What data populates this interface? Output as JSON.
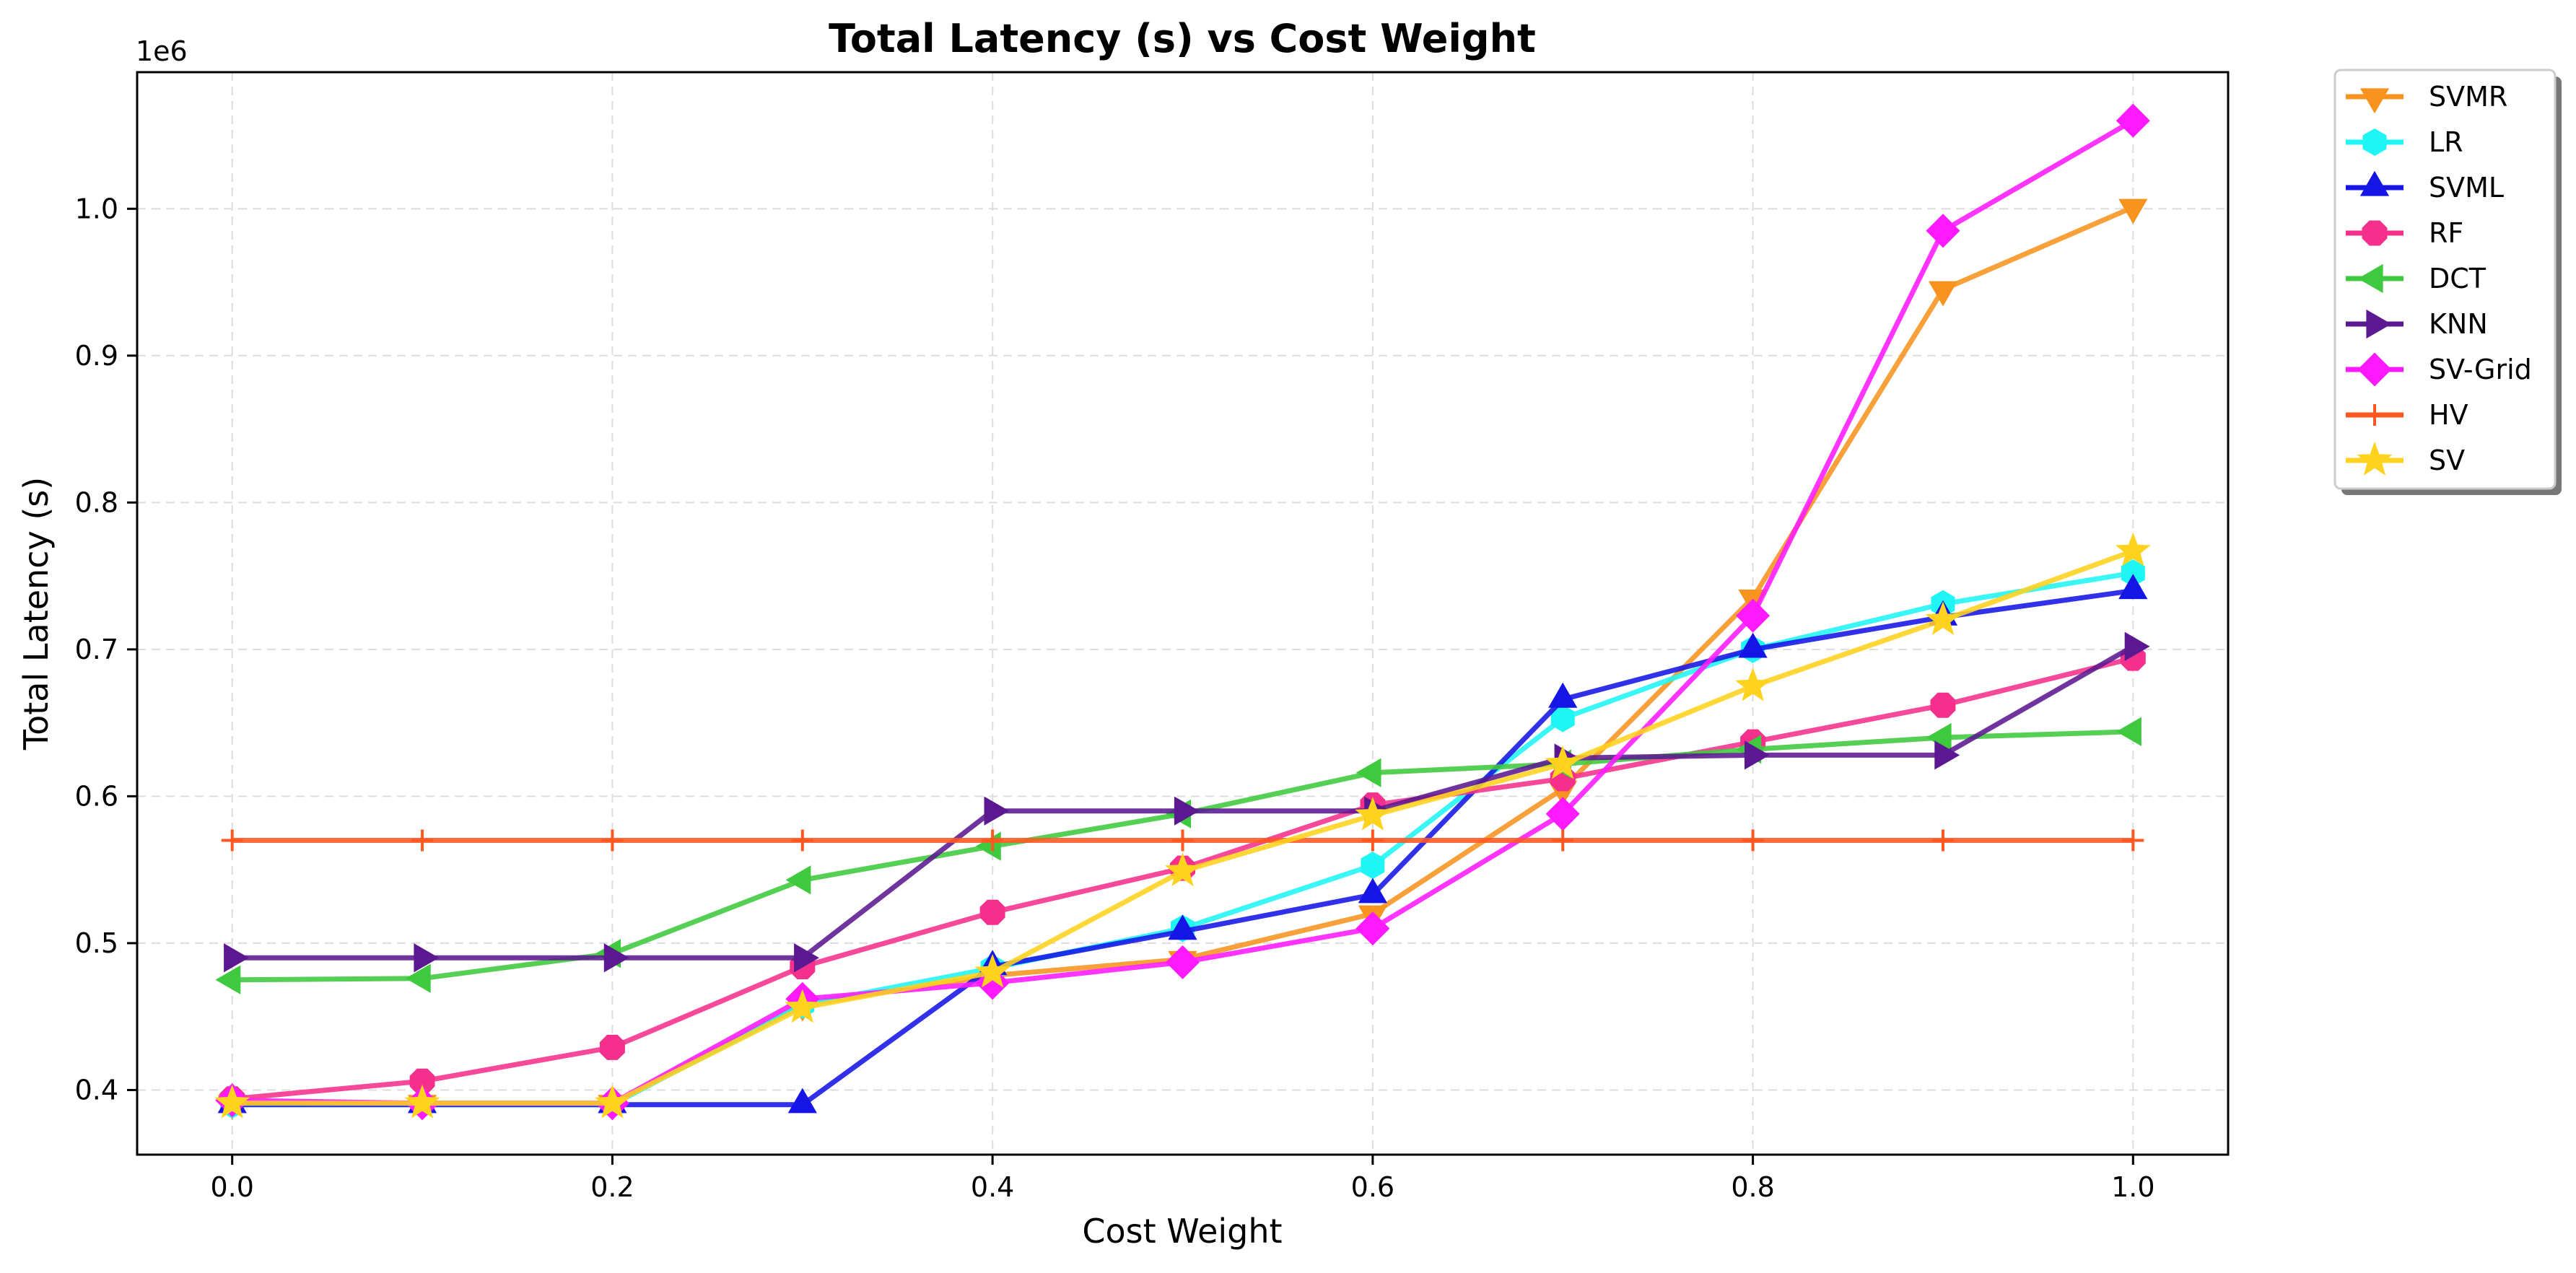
{
  "chart_data": {
    "type": "line",
    "title": "Total Latency (s) vs Cost Weight",
    "xlabel": "Cost Weight",
    "ylabel": "Total Latency (s)",
    "y_offset_label": "1e6",
    "y_scale": 1000000,
    "x": [
      0.0,
      0.1,
      0.2,
      0.3,
      0.4,
      0.5,
      0.6,
      0.7,
      0.8,
      0.9,
      1.0
    ],
    "xlim": [
      -0.05,
      1.05
    ],
    "ylim": [
      356000,
      1093000
    ],
    "x_ticks": [
      0.0,
      0.2,
      0.4,
      0.6,
      0.8,
      1.0
    ],
    "x_tick_labels": [
      "0.0",
      "0.2",
      "0.4",
      "0.6",
      "0.8",
      "1.0"
    ],
    "y_ticks": [
      400000,
      500000,
      600000,
      700000,
      800000,
      900000,
      1000000
    ],
    "y_tick_labels": [
      "0.4",
      "0.5",
      "0.6",
      "0.7",
      "0.8",
      "0.9",
      "1.0"
    ],
    "grid": true,
    "legend_position": "outside-top-right",
    "series": [
      {
        "name": "SVMR",
        "color": "#f7931e",
        "marker": "triangle-down",
        "values": [
          391000,
          391000,
          391000,
          458000,
          478000,
          489000,
          520000,
          605000,
          735000,
          945000,
          1001000
        ]
      },
      {
        "name": "LR",
        "color": "#1ff5f5",
        "marker": "hexagon",
        "values": [
          390000,
          390000,
          390000,
          458000,
          483000,
          510000,
          553000,
          653000,
          700000,
          731000,
          752000
        ]
      },
      {
        "name": "SVML",
        "color": "#1515e6",
        "marker": "triangle-up",
        "values": [
          390000,
          390000,
          390000,
          390000,
          484000,
          508000,
          533000,
          666000,
          700000,
          722000,
          740000
        ]
      },
      {
        "name": "RF",
        "color": "#f5308c",
        "marker": "octagon",
        "values": [
          394000,
          406000,
          429000,
          484000,
          521000,
          551000,
          594000,
          612000,
          637000,
          662000,
          694000
        ]
      },
      {
        "name": "DCT",
        "color": "#3ec93e",
        "marker": "triangle-left",
        "values": [
          475000,
          476000,
          493000,
          543000,
          566000,
          588000,
          616000,
          622000,
          632000,
          640000,
          644000
        ]
      },
      {
        "name": "KNN",
        "color": "#5b1890",
        "marker": "triangle-right",
        "values": [
          490000,
          490000,
          490000,
          490000,
          590000,
          590000,
          590000,
          626000,
          628000,
          628000,
          702000
        ]
      },
      {
        "name": "SV-Grid",
        "color": "#ff19ff",
        "marker": "diamond",
        "values": [
          393000,
          391000,
          391000,
          462000,
          473000,
          487000,
          510000,
          588000,
          723000,
          985000,
          1060000
        ]
      },
      {
        "name": "HV",
        "color": "#ff5722",
        "marker": "plus",
        "values": [
          570000,
          570000,
          570000,
          570000,
          570000,
          570000,
          570000,
          570000,
          570000,
          570000,
          570000
        ]
      },
      {
        "name": "SV",
        "color": "#ffd21e",
        "marker": "star",
        "values": [
          391000,
          391000,
          391000,
          456000,
          480000,
          549000,
          587000,
          622000,
          675000,
          720000,
          767000
        ]
      }
    ]
  }
}
